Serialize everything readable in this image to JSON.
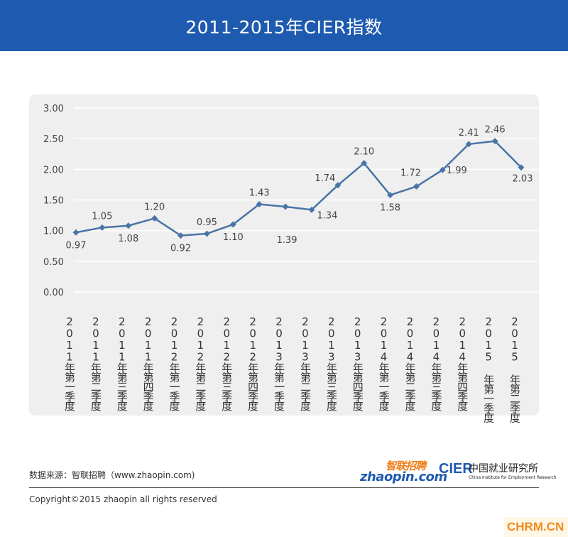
{
  "header": {
    "title": "2011-2015年CIER指数"
  },
  "chart_data": {
    "type": "line",
    "title": "2011-2015年CIER指数",
    "categories": [
      "2011年第一季度",
      "2011年第二季度",
      "2011年第三季度",
      "2011年第四季度",
      "2012年第一季度",
      "2012年第二季度",
      "2012年第三季度",
      "2012年第四季度",
      "2013年第一季度",
      "2013年第二季度",
      "2013年第三季度",
      "2013年第四季度",
      "2014年第一季度",
      "2014年第二季度",
      "2014年第三季度",
      "2014年第四季度",
      "2015 年第一季度",
      "2015 年第二季度"
    ],
    "values": [
      0.97,
      1.05,
      1.08,
      1.2,
      0.92,
      0.95,
      1.1,
      1.43,
      1.39,
      1.34,
      1.74,
      2.1,
      1.58,
      1.72,
      1.99,
      2.41,
      2.46,
      2.03
    ],
    "value_labels": [
      "0.97",
      "1.05",
      "1.08",
      "1.20",
      "0.92",
      "0.95",
      "1.10",
      "1.43",
      "1.39",
      "1.34",
      "1.74",
      "2.10",
      "1.58",
      "1.72",
      "1.99",
      "2.41",
      "2.46",
      "2.03"
    ],
    "yticks": [
      "0.00",
      "0.50",
      "1.00",
      "1.50",
      "2.00",
      "2.50",
      "3.00"
    ],
    "ylim": [
      0,
      3.0
    ],
    "grid": true,
    "line_color": "#4a74a6"
  },
  "footer": {
    "source": "数据来源：智联招聘（www.zhaopin.com)",
    "copyright": "Copyright©2015 zhaopin all rights reserved",
    "logo_zhaopin_cn": "智联招聘",
    "logo_zhaopin_en": "zhaopin.com",
    "logo_cier_mark": "CIER",
    "logo_cier_cn": "中国就业研究所",
    "logo_cier_en": "China Institute for Employment Research",
    "watermark": "CHRM.CN"
  },
  "colors": {
    "banner": "#1e5bb0",
    "panel": "#efefef",
    "accent": "#ef7f1a"
  }
}
